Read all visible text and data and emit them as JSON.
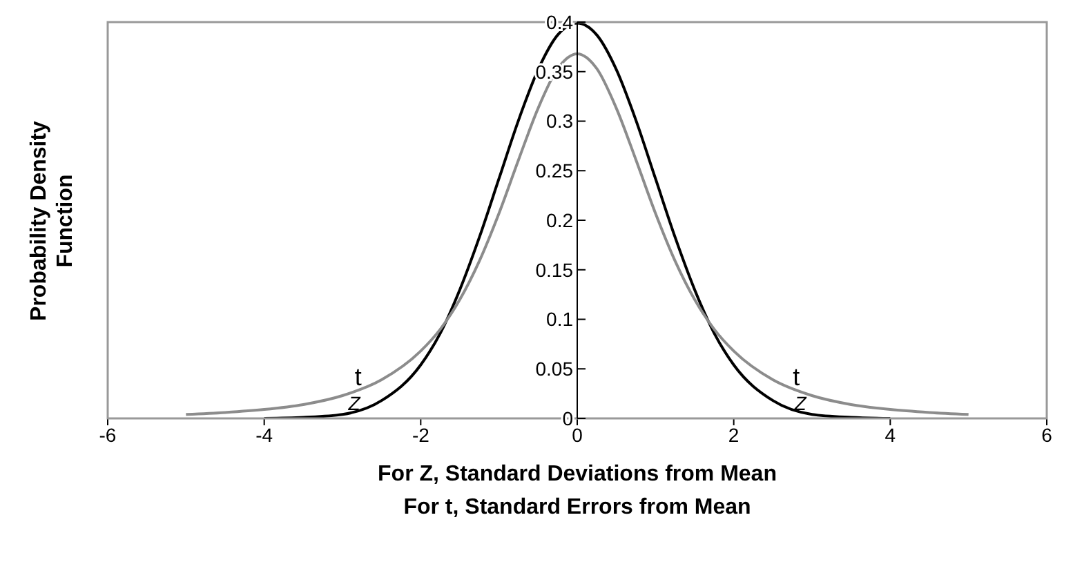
{
  "chart_data": {
    "type": "line",
    "xlabel": "For Z, Standard Deviations from Mean\nFor t, Standard Errors from Mean",
    "ylabel": "Probability Density Function",
    "xlim": [
      -6,
      6
    ],
    "xticks": [
      -6,
      -4,
      -2,
      0,
      2,
      4,
      6
    ],
    "ylim": [
      0,
      0.4
    ],
    "yticks": [
      0,
      0.05,
      0.1,
      0.15,
      0.2,
      0.25,
      0.3,
      0.35,
      0.4
    ],
    "grid": false,
    "legend": false,
    "marker": "none",
    "line_style": "solid",
    "series": [
      {
        "name": "Z",
        "color": "#000000",
        "x": [
          -4,
          -3.5,
          -3,
          -2.5,
          -2,
          -1.75,
          -1.5,
          -1.25,
          -1,
          -0.75,
          -0.5,
          -0.25,
          0,
          0.25,
          0.5,
          0.75,
          1,
          1.25,
          1.5,
          1.75,
          2,
          2.5,
          3,
          3.5,
          4
        ],
        "values": [
          0,
          0.001,
          0.004,
          0.018,
          0.054,
          0.086,
          0.13,
          0.183,
          0.242,
          0.301,
          0.352,
          0.387,
          0.399,
          0.387,
          0.352,
          0.301,
          0.242,
          0.183,
          0.13,
          0.086,
          0.054,
          0.018,
          0.004,
          0.001,
          0
        ]
      },
      {
        "name": "t",
        "color": "#8c8c8c",
        "x": [
          -5,
          -4.5,
          -4,
          -3.5,
          -3,
          -2.5,
          -2,
          -1.75,
          -1.5,
          -1.25,
          -1,
          -0.75,
          -0.5,
          -0.25,
          0,
          0.25,
          0.5,
          0.75,
          1,
          1.25,
          1.5,
          1.75,
          2,
          2.5,
          3,
          3.5,
          4,
          4.5,
          5
        ],
        "values": [
          0.004,
          0.006,
          0.009,
          0.014,
          0.023,
          0.039,
          0.068,
          0.09,
          0.12,
          0.159,
          0.207,
          0.261,
          0.313,
          0.353,
          0.368,
          0.353,
          0.313,
          0.261,
          0.207,
          0.159,
          0.12,
          0.09,
          0.068,
          0.039,
          0.023,
          0.014,
          0.009,
          0.006,
          0.004
        ]
      }
    ]
  }
}
